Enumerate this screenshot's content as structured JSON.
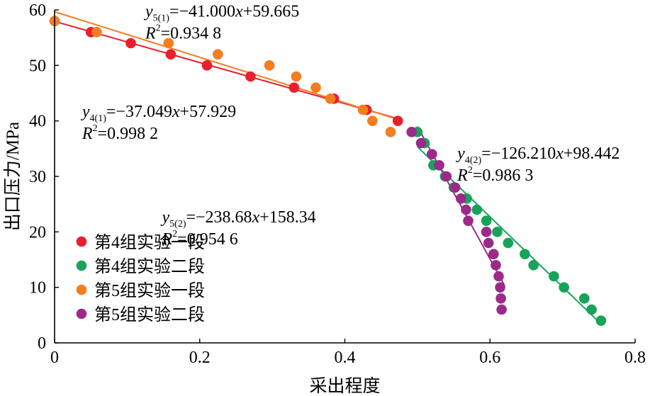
{
  "chart_data": {
    "type": "scatter",
    "xlabel": "采出程度",
    "ylabel": "出口压力/MPa",
    "xlim": [
      0,
      0.8
    ],
    "ylim": [
      0,
      60
    ],
    "xticks": [
      "0",
      "0.2",
      "0.4",
      "0.6",
      "0.8"
    ],
    "yticks": [
      "0",
      "10",
      "20",
      "30",
      "40",
      "50",
      "60"
    ],
    "grid": false,
    "legend_position": "bottom-left",
    "series": [
      {
        "name": "第4组实验一段",
        "color": "#e8202e",
        "points": [
          [
            0.0,
            58.0
          ],
          [
            0.05,
            56.0
          ],
          [
            0.105,
            54.0
          ],
          [
            0.16,
            52.0
          ],
          [
            0.21,
            50.0
          ],
          [
            0.27,
            48.0
          ],
          [
            0.33,
            46.0
          ],
          [
            0.385,
            44.0
          ],
          [
            0.43,
            42.0
          ],
          [
            0.473,
            40.0
          ]
        ],
        "fit": {
          "slope": -37.049,
          "intercept": 57.929,
          "x_range": [
            0.0,
            0.476
          ]
        }
      },
      {
        "name": "第4组实验二段",
        "color": "#17a35a",
        "points": [
          [
            0.5,
            38.0
          ],
          [
            0.51,
            36.0
          ],
          [
            0.52,
            34.0
          ],
          [
            0.522,
            32.0
          ],
          [
            0.538,
            30.0
          ],
          [
            0.55,
            28.0
          ],
          [
            0.568,
            26.0
          ],
          [
            0.582,
            24.0
          ],
          [
            0.595,
            22.0
          ],
          [
            0.61,
            20.0
          ],
          [
            0.625,
            18.0
          ],
          [
            0.648,
            16.0
          ],
          [
            0.66,
            14.0
          ],
          [
            0.688,
            12.0
          ],
          [
            0.702,
            10.0
          ],
          [
            0.73,
            8.0
          ],
          [
            0.74,
            6.0
          ],
          [
            0.753,
            4.0
          ]
        ],
        "fit": {
          "slope": -126.21,
          "intercept": 98.442,
          "x_range": [
            0.5,
            0.752
          ]
        }
      },
      {
        "name": "第5组实验一段",
        "color": "#f47d20",
        "points": [
          [
            0.0,
            58.0
          ],
          [
            0.058,
            56.0
          ],
          [
            0.157,
            54.0
          ],
          [
            0.225,
            52.0
          ],
          [
            0.296,
            50.0
          ],
          [
            0.333,
            48.0
          ],
          [
            0.36,
            46.0
          ],
          [
            0.38,
            44.0
          ],
          [
            0.425,
            42.0
          ],
          [
            0.438,
            40.0
          ],
          [
            0.463,
            38.0
          ]
        ],
        "fit": {
          "slope": -41.0,
          "intercept": 59.665,
          "x_range": [
            0.0,
            0.47
          ]
        }
      },
      {
        "name": "第5组实验二段",
        "color": "#9c2a8a",
        "points": [
          [
            0.492,
            38.0
          ],
          [
            0.505,
            36.0
          ],
          [
            0.52,
            34.0
          ],
          [
            0.53,
            32.0
          ],
          [
            0.54,
            30.0
          ],
          [
            0.552,
            28.0
          ],
          [
            0.56,
            26.0
          ],
          [
            0.567,
            24.0
          ],
          [
            0.57,
            22.0
          ],
          [
            0.595,
            20.0
          ],
          [
            0.598,
            18.0
          ],
          [
            0.605,
            16.0
          ],
          [
            0.608,
            14.0
          ],
          [
            0.612,
            12.0
          ],
          [
            0.614,
            10.0
          ],
          [
            0.615,
            8.0
          ],
          [
            0.616,
            6.0
          ]
        ],
        "fit": {
          "slope": -238.68,
          "intercept": 158.34,
          "x_range": [
            0.5,
            0.62
          ]
        }
      }
    ],
    "annotations": [
      {
        "id": "eq5-1",
        "var": "y",
        "sub": "5(1)",
        "rhs": "=−41.000x+59.665",
        "r2": "=0.934 8",
        "anchor": [
          0.125,
          58.8
        ]
      },
      {
        "id": "eq4-1",
        "var": "y",
        "sub": "4(1)",
        "rhs": "=−37.049x+57.929",
        "r2": "=0.998 2",
        "anchor": [
          0.038,
          40.7
        ]
      },
      {
        "id": "eq4-2",
        "var": "y",
        "sub": "4(2)",
        "rhs": "=−126.210x+98.442",
        "r2": "=0.986 3",
        "anchor": [
          0.555,
          33.2
        ]
      },
      {
        "id": "eq5-2",
        "var": "y",
        "sub": "5(2)",
        "rhs": "=−238.68x+158.34",
        "r2": "=0.954 6",
        "anchor": [
          0.148,
          21.7
        ]
      }
    ]
  }
}
